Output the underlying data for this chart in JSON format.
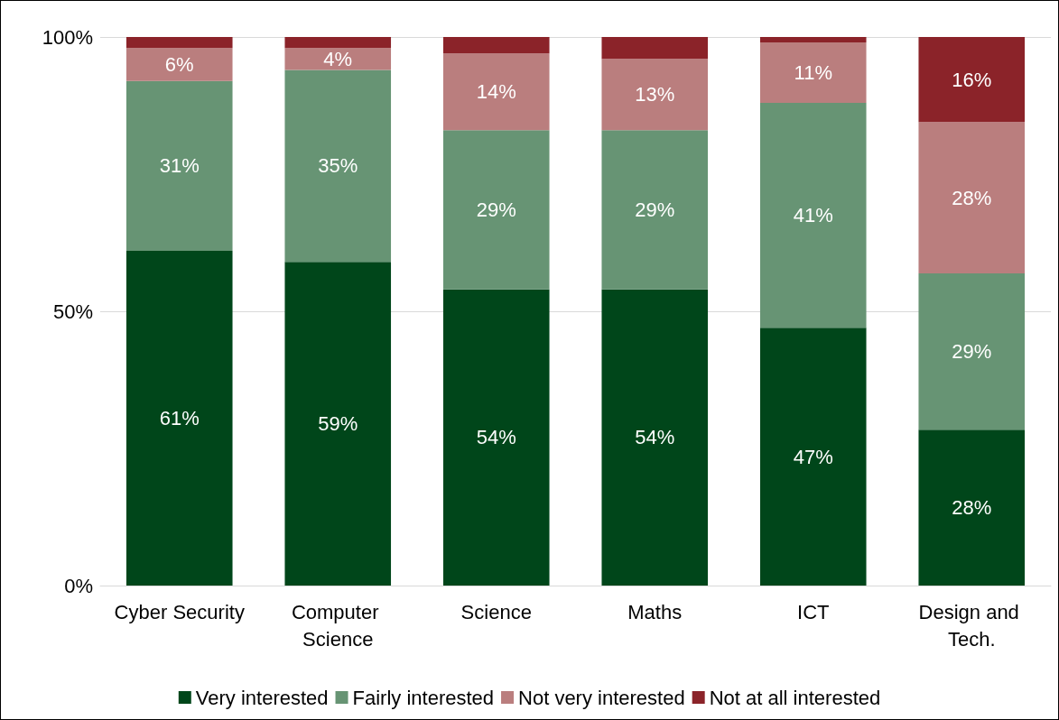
{
  "chart_data": {
    "type": "bar",
    "stacked": true,
    "categories": [
      "Cyber Security",
      "Computer Science",
      "Science",
      "Maths",
      "ICT",
      "Design and Tech."
    ],
    "series": [
      {
        "name": "Very interested",
        "color": "#00461a",
        "values": [
          61,
          59,
          54,
          54,
          47,
          28.4
        ],
        "value_labels": [
          "61%",
          "59%",
          "54%",
          "54%",
          "47%",
          "28%"
        ]
      },
      {
        "name": "Fairly interested",
        "color": "#679474",
        "values": [
          31,
          35,
          29,
          29,
          41,
          28.5
        ],
        "value_labels": [
          "31%",
          "35%",
          "29%",
          "29%",
          "41%",
          "29%"
        ]
      },
      {
        "name": "Not very interested",
        "color": "#ba7e7e",
        "values": [
          6,
          4,
          14,
          13,
          11,
          27.6
        ],
        "value_labels": [
          "6%",
          "4%",
          "14%",
          "13%",
          "11%",
          "28%"
        ]
      },
      {
        "name": "Not at all interested",
        "color": "#8b2329",
        "values": [
          2,
          2,
          3,
          4,
          1,
          15.5
        ],
        "value_labels": [
          null,
          null,
          null,
          null,
          null,
          "16%"
        ]
      }
    ],
    "ylim": [
      0,
      100
    ],
    "yticks": [
      {
        "value": 0,
        "label": "0%"
      },
      {
        "value": 50,
        "label": "50%"
      },
      {
        "value": 100,
        "label": "100%"
      }
    ],
    "grid": "y",
    "legend": "bottom"
  }
}
